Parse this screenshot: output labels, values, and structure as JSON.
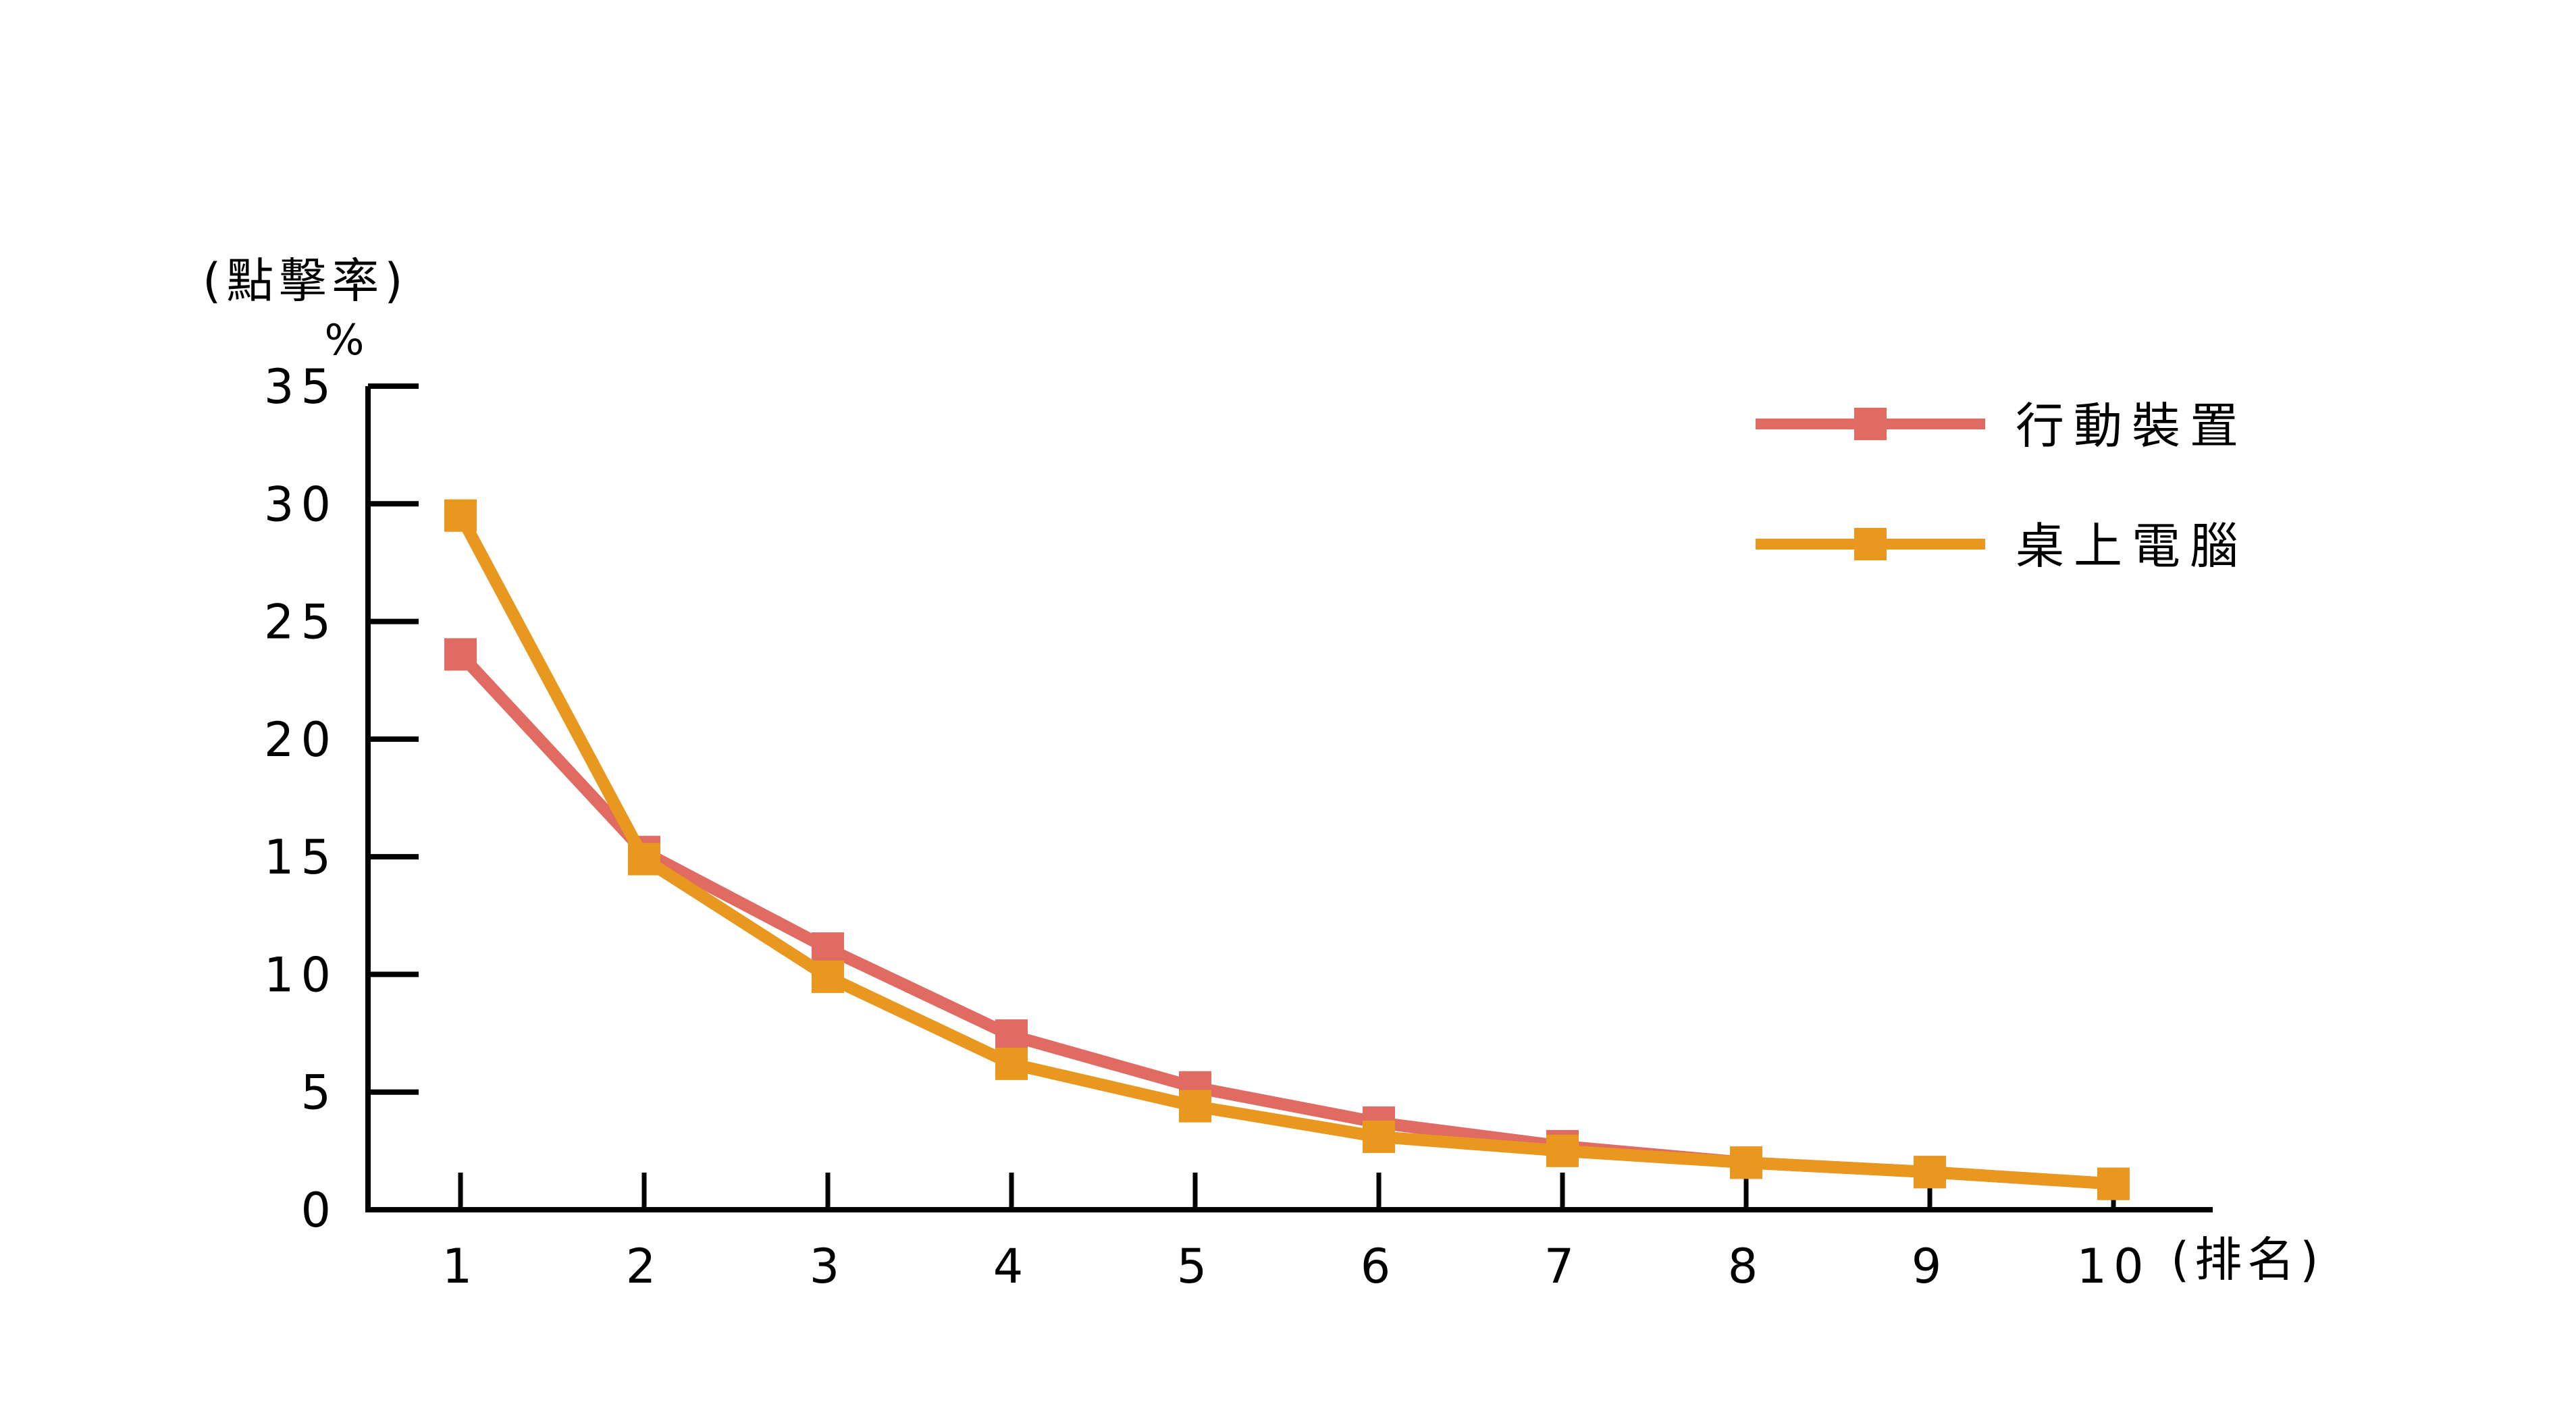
{
  "chart_data": {
    "type": "line",
    "title": "",
    "ylabel": "(點擊率)",
    "yunit": "%",
    "xlabel": "(排名)",
    "x": [
      1,
      2,
      3,
      4,
      5,
      6,
      7,
      8,
      9,
      10
    ],
    "ylim": [
      0,
      35
    ],
    "yticks": [
      0,
      5,
      10,
      15,
      20,
      25,
      30,
      35
    ],
    "grid": false,
    "legend_position": "top-right",
    "series": [
      {
        "name": "行動裝置",
        "color": "#E06B63",
        "values": [
          23.6,
          15.2,
          11.1,
          7.4,
          5.2,
          3.7,
          2.7,
          2.0,
          1.6,
          1.1
        ]
      },
      {
        "name": "桌上電腦",
        "color": "#E8981F",
        "values": [
          29.5,
          14.9,
          9.9,
          6.2,
          4.4,
          3.1,
          2.5,
          2.0,
          1.6,
          1.1
        ]
      }
    ]
  }
}
